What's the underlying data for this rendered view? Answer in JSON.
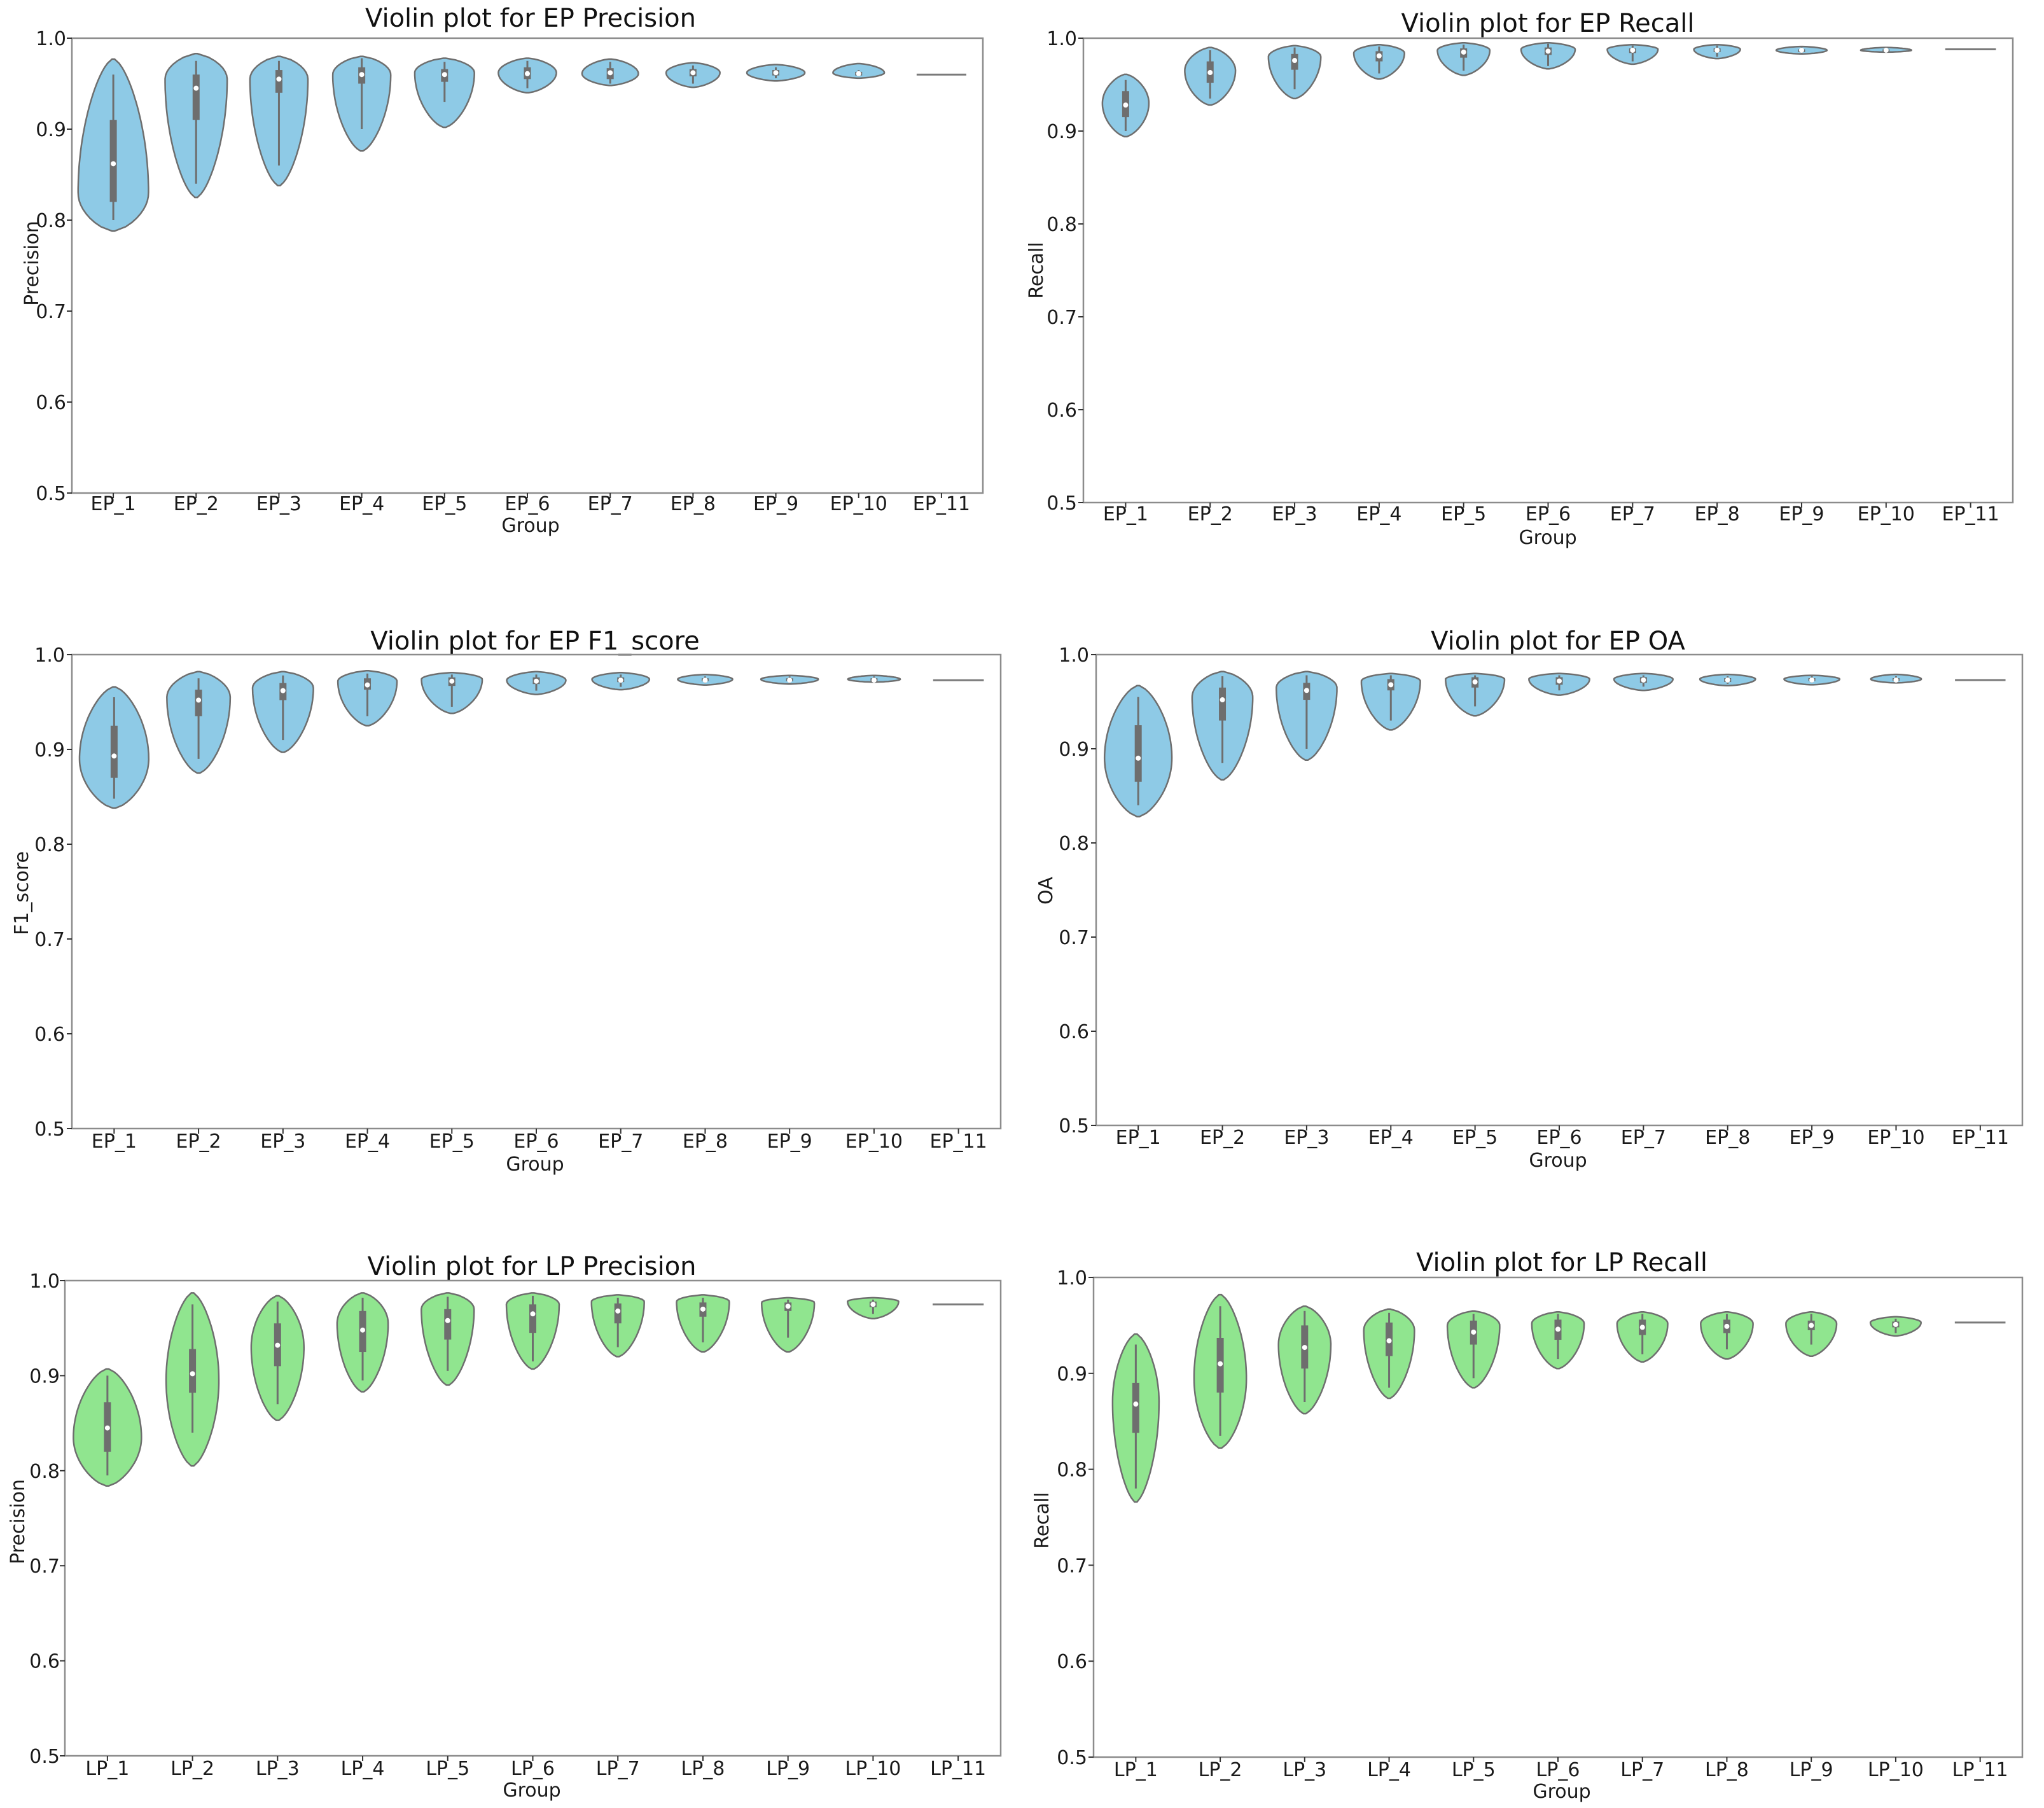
{
  "colors": {
    "ep_fill": "#8ecae6",
    "lp_fill": "#90e58f",
    "violin_edge": "#6e6e6e",
    "box": "#6e6e6e",
    "median": "#ffffff",
    "frame": "#8c8c8c"
  },
  "chart_data": [
    {
      "type": "violin",
      "title": "Violin plot for EP Precision",
      "xlabel": "Group",
      "ylabel": "Precision",
      "ylim": [
        0.5,
        1.0
      ],
      "yticks": [
        "0.5",
        "0.6",
        "0.7",
        "0.8",
        "0.9",
        "1.0"
      ],
      "color": "ep_fill",
      "grid": false,
      "categories": [
        "EP_1",
        "EP_2",
        "EP_3",
        "EP_4",
        "EP_5",
        "EP_6",
        "EP_7",
        "EP_8",
        "EP_9",
        "EP_10",
        "EP_11"
      ],
      "violins": [
        {
          "min": 0.788,
          "max": 0.977,
          "q1": 0.82,
          "median": 0.862,
          "q3": 0.91,
          "wlo": 0.8,
          "whi": 0.96,
          "width": 0.85,
          "mode": 0.83
        },
        {
          "min": 0.825,
          "max": 0.983,
          "q1": 0.91,
          "median": 0.945,
          "q3": 0.96,
          "wlo": 0.84,
          "whi": 0.975,
          "width": 0.75,
          "mode": 0.955
        },
        {
          "min": 0.838,
          "max": 0.98,
          "q1": 0.94,
          "median": 0.955,
          "q3": 0.965,
          "wlo": 0.86,
          "whi": 0.975,
          "width": 0.7,
          "mode": 0.955
        },
        {
          "min": 0.876,
          "max": 0.98,
          "q1": 0.95,
          "median": 0.96,
          "q3": 0.968,
          "wlo": 0.9,
          "whi": 0.978,
          "width": 0.7,
          "mode": 0.96
        },
        {
          "min": 0.902,
          "max": 0.978,
          "q1": 0.952,
          "median": 0.96,
          "q3": 0.966,
          "wlo": 0.93,
          "whi": 0.974,
          "width": 0.72,
          "mode": 0.962
        },
        {
          "min": 0.94,
          "max": 0.978,
          "q1": 0.955,
          "median": 0.961,
          "q3": 0.968,
          "wlo": 0.945,
          "whi": 0.975,
          "width": 0.7,
          "mode": 0.962
        },
        {
          "min": 0.948,
          "max": 0.977,
          "q1": 0.955,
          "median": 0.962,
          "q3": 0.967,
          "wlo": 0.95,
          "whi": 0.974,
          "width": 0.68,
          "mode": 0.961
        },
        {
          "min": 0.946,
          "max": 0.973,
          "q1": 0.958,
          "median": 0.962,
          "q3": 0.966,
          "wlo": 0.95,
          "whi": 0.97,
          "width": 0.65,
          "mode": 0.962
        },
        {
          "min": 0.953,
          "max": 0.971,
          "q1": 0.959,
          "median": 0.962,
          "q3": 0.965,
          "wlo": 0.956,
          "whi": 0.968,
          "width": 0.7,
          "mode": 0.962
        },
        {
          "min": 0.956,
          "max": 0.972,
          "q1": 0.959,
          "median": 0.961,
          "q3": 0.963,
          "wlo": 0.958,
          "whi": 0.965,
          "width": 0.62,
          "mode": 0.962
        },
        {
          "flat": 0.96,
          "width": 0.6
        }
      ]
    },
    {
      "type": "violin",
      "title": "Violin plot for EP Recall",
      "xlabel": "Group",
      "ylabel": "Recall",
      "ylim": [
        0.5,
        1.0
      ],
      "yticks": [
        "0.5",
        "0.6",
        "0.7",
        "0.8",
        "0.9",
        "1.0"
      ],
      "color": "ep_fill",
      "grid": false,
      "categories": [
        "EP_1",
        "EP_2",
        "EP_3",
        "EP_4",
        "EP_5",
        "EP_6",
        "EP_7",
        "EP_8",
        "EP_9",
        "EP_10",
        "EP_11"
      ],
      "violins": [
        {
          "min": 0.894,
          "max": 0.961,
          "q1": 0.915,
          "median": 0.928,
          "q3": 0.943,
          "wlo": 0.9,
          "whi": 0.955,
          "width": 0.55,
          "mode": 0.93
        },
        {
          "min": 0.928,
          "max": 0.99,
          "q1": 0.952,
          "median": 0.963,
          "q3": 0.975,
          "wlo": 0.935,
          "whi": 0.987,
          "width": 0.6,
          "mode": 0.965
        },
        {
          "min": 0.935,
          "max": 0.992,
          "q1": 0.966,
          "median": 0.976,
          "q3": 0.983,
          "wlo": 0.945,
          "whi": 0.99,
          "width": 0.62,
          "mode": 0.98
        },
        {
          "min": 0.956,
          "max": 0.993,
          "q1": 0.975,
          "median": 0.981,
          "q3": 0.986,
          "wlo": 0.962,
          "whi": 0.991,
          "width": 0.6,
          "mode": 0.984
        },
        {
          "min": 0.96,
          "max": 0.995,
          "q1": 0.979,
          "median": 0.985,
          "q3": 0.989,
          "wlo": 0.965,
          "whi": 0.993,
          "width": 0.62,
          "mode": 0.987
        },
        {
          "min": 0.967,
          "max": 0.995,
          "q1": 0.982,
          "median": 0.986,
          "q3": 0.99,
          "wlo": 0.97,
          "whi": 0.994,
          "width": 0.64,
          "mode": 0.988
        },
        {
          "min": 0.972,
          "max": 0.993,
          "q1": 0.984,
          "median": 0.987,
          "q3": 0.989,
          "wlo": 0.975,
          "whi": 0.992,
          "width": 0.6,
          "mode": 0.988
        },
        {
          "min": 0.978,
          "max": 0.993,
          "q1": 0.985,
          "median": 0.987,
          "q3": 0.989,
          "wlo": 0.98,
          "whi": 0.992,
          "width": 0.55,
          "mode": 0.988
        },
        {
          "min": 0.983,
          "max": 0.991,
          "q1": 0.985,
          "median": 0.987,
          "q3": 0.988,
          "wlo": 0.984,
          "whi": 0.99,
          "width": 0.6,
          "mode": 0.987
        },
        {
          "min": 0.985,
          "max": 0.99,
          "q1": 0.986,
          "median": 0.987,
          "q3": 0.988,
          "wlo": 0.985,
          "whi": 0.989,
          "width": 0.6,
          "mode": 0.987
        },
        {
          "flat": 0.988,
          "width": 0.6
        }
      ]
    },
    {
      "type": "violin",
      "title": "Violin plot for EP F1_score",
      "xlabel": "Group",
      "ylabel": "F1_score",
      "ylim": [
        0.5,
        1.0
      ],
      "yticks": [
        "0.5",
        "0.6",
        "0.7",
        "0.8",
        "0.9",
        "1.0"
      ],
      "color": "ep_fill",
      "grid": false,
      "categories": [
        "EP_1",
        "EP_2",
        "EP_3",
        "EP_4",
        "EP_5",
        "EP_6",
        "EP_7",
        "EP_8",
        "EP_9",
        "EP_10",
        "EP_11"
      ],
      "violins": [
        {
          "min": 0.838,
          "max": 0.966,
          "q1": 0.87,
          "median": 0.893,
          "q3": 0.925,
          "wlo": 0.848,
          "whi": 0.955,
          "width": 0.82,
          "mode": 0.89
        },
        {
          "min": 0.875,
          "max": 0.982,
          "q1": 0.935,
          "median": 0.952,
          "q3": 0.963,
          "wlo": 0.89,
          "whi": 0.975,
          "width": 0.75,
          "mode": 0.955
        },
        {
          "min": 0.897,
          "max": 0.982,
          "q1": 0.952,
          "median": 0.962,
          "q3": 0.97,
          "wlo": 0.91,
          "whi": 0.978,
          "width": 0.72,
          "mode": 0.965
        },
        {
          "min": 0.925,
          "max": 0.983,
          "q1": 0.963,
          "median": 0.968,
          "q3": 0.975,
          "wlo": 0.935,
          "whi": 0.98,
          "width": 0.7,
          "mode": 0.972
        },
        {
          "min": 0.938,
          "max": 0.981,
          "q1": 0.967,
          "median": 0.972,
          "q3": 0.976,
          "wlo": 0.945,
          "whi": 0.979,
          "width": 0.72,
          "mode": 0.974
        },
        {
          "min": 0.958,
          "max": 0.982,
          "q1": 0.969,
          "median": 0.972,
          "q3": 0.976,
          "wlo": 0.962,
          "whi": 0.979,
          "width": 0.7,
          "mode": 0.973
        },
        {
          "min": 0.963,
          "max": 0.981,
          "q1": 0.971,
          "median": 0.973,
          "q3": 0.976,
          "wlo": 0.966,
          "whi": 0.979,
          "width": 0.68,
          "mode": 0.974
        },
        {
          "min": 0.968,
          "max": 0.979,
          "q1": 0.972,
          "median": 0.973,
          "q3": 0.975,
          "wlo": 0.97,
          "whi": 0.977,
          "width": 0.65,
          "mode": 0.974
        },
        {
          "min": 0.969,
          "max": 0.978,
          "q1": 0.972,
          "median": 0.973,
          "q3": 0.975,
          "wlo": 0.97,
          "whi": 0.977,
          "width": 0.68,
          "mode": 0.974
        },
        {
          "min": 0.971,
          "max": 0.978,
          "q1": 0.972,
          "median": 0.973,
          "q3": 0.975,
          "wlo": 0.971,
          "whi": 0.977,
          "width": 0.62,
          "mode": 0.974
        },
        {
          "flat": 0.973,
          "width": 0.6
        }
      ]
    },
    {
      "type": "violin",
      "title": "Violin plot for EP OA",
      "xlabel": "Group",
      "ylabel": "OA",
      "ylim": [
        0.5,
        1.0
      ],
      "yticks": [
        "0.5",
        "0.6",
        "0.7",
        "0.8",
        "0.9",
        "1.0"
      ],
      "color": "ep_fill",
      "grid": false,
      "categories": [
        "EP_1",
        "EP_2",
        "EP_3",
        "EP_4",
        "EP_5",
        "EP_6",
        "EP_7",
        "EP_8",
        "EP_9",
        "EP_10",
        "EP_11"
      ],
      "violins": [
        {
          "min": 0.828,
          "max": 0.967,
          "q1": 0.865,
          "median": 0.89,
          "q3": 0.925,
          "wlo": 0.84,
          "whi": 0.955,
          "width": 0.8,
          "mode": 0.89
        },
        {
          "min": 0.867,
          "max": 0.982,
          "q1": 0.93,
          "median": 0.952,
          "q3": 0.965,
          "wlo": 0.885,
          "whi": 0.977,
          "width": 0.72,
          "mode": 0.955
        },
        {
          "min": 0.888,
          "max": 0.982,
          "q1": 0.952,
          "median": 0.962,
          "q3": 0.97,
          "wlo": 0.9,
          "whi": 0.978,
          "width": 0.72,
          "mode": 0.965
        },
        {
          "min": 0.92,
          "max": 0.98,
          "q1": 0.962,
          "median": 0.968,
          "q3": 0.974,
          "wlo": 0.93,
          "whi": 0.978,
          "width": 0.7,
          "mode": 0.972
        },
        {
          "min": 0.935,
          "max": 0.98,
          "q1": 0.965,
          "median": 0.971,
          "q3": 0.976,
          "wlo": 0.945,
          "whi": 0.978,
          "width": 0.7,
          "mode": 0.974
        },
        {
          "min": 0.957,
          "max": 0.98,
          "q1": 0.968,
          "median": 0.972,
          "q3": 0.976,
          "wlo": 0.962,
          "whi": 0.978,
          "width": 0.72,
          "mode": 0.974
        },
        {
          "min": 0.962,
          "max": 0.98,
          "q1": 0.97,
          "median": 0.973,
          "q3": 0.976,
          "wlo": 0.966,
          "whi": 0.978,
          "width": 0.7,
          "mode": 0.974
        },
        {
          "min": 0.967,
          "max": 0.979,
          "q1": 0.971,
          "median": 0.973,
          "q3": 0.975,
          "wlo": 0.969,
          "whi": 0.977,
          "width": 0.66,
          "mode": 0.974
        },
        {
          "min": 0.968,
          "max": 0.978,
          "q1": 0.972,
          "median": 0.973,
          "q3": 0.975,
          "wlo": 0.97,
          "whi": 0.977,
          "width": 0.66,
          "mode": 0.974
        },
        {
          "min": 0.97,
          "max": 0.979,
          "q1": 0.972,
          "median": 0.973,
          "q3": 0.975,
          "wlo": 0.971,
          "whi": 0.977,
          "width": 0.6,
          "mode": 0.974
        },
        {
          "flat": 0.973,
          "width": 0.6
        }
      ]
    },
    {
      "type": "violin",
      "title": "Violin plot for LP Precision",
      "xlabel": "Group",
      "ylabel": "Precision",
      "ylim": [
        0.5,
        1.0
      ],
      "yticks": [
        "0.5",
        "0.6",
        "0.7",
        "0.8",
        "0.9",
        "1.0"
      ],
      "color": "lp_fill",
      "grid": false,
      "categories": [
        "LP_1",
        "LP_2",
        "LP_3",
        "LP_4",
        "LP_5",
        "LP_6",
        "LP_7",
        "LP_8",
        "LP_9",
        "LP_10",
        "LP_11"
      ],
      "violins": [
        {
          "min": 0.784,
          "max": 0.907,
          "q1": 0.82,
          "median": 0.845,
          "q3": 0.872,
          "wlo": 0.795,
          "whi": 0.9,
          "width": 0.8,
          "mode": 0.835
        },
        {
          "min": 0.805,
          "max": 0.987,
          "q1": 0.882,
          "median": 0.902,
          "q3": 0.928,
          "wlo": 0.84,
          "whi": 0.975,
          "width": 0.62,
          "mode": 0.895
        },
        {
          "min": 0.853,
          "max": 0.984,
          "q1": 0.91,
          "median": 0.932,
          "q3": 0.955,
          "wlo": 0.87,
          "whi": 0.978,
          "width": 0.62,
          "mode": 0.93
        },
        {
          "min": 0.883,
          "max": 0.987,
          "q1": 0.925,
          "median": 0.948,
          "q3": 0.968,
          "wlo": 0.895,
          "whi": 0.982,
          "width": 0.6,
          "mode": 0.955
        },
        {
          "min": 0.89,
          "max": 0.987,
          "q1": 0.938,
          "median": 0.958,
          "q3": 0.97,
          "wlo": 0.905,
          "whi": 0.983,
          "width": 0.62,
          "mode": 0.97
        },
        {
          "min": 0.907,
          "max": 0.987,
          "q1": 0.945,
          "median": 0.965,
          "q3": 0.975,
          "wlo": 0.915,
          "whi": 0.984,
          "width": 0.62,
          "mode": 0.975
        },
        {
          "min": 0.92,
          "max": 0.985,
          "q1": 0.955,
          "median": 0.968,
          "q3": 0.976,
          "wlo": 0.93,
          "whi": 0.982,
          "width": 0.62,
          "mode": 0.978
        },
        {
          "min": 0.925,
          "max": 0.985,
          "q1": 0.962,
          "median": 0.97,
          "q3": 0.977,
          "wlo": 0.935,
          "whi": 0.982,
          "width": 0.62,
          "mode": 0.978
        },
        {
          "min": 0.925,
          "max": 0.982,
          "q1": 0.968,
          "median": 0.973,
          "q3": 0.977,
          "wlo": 0.94,
          "whi": 0.98,
          "width": 0.62,
          "mode": 0.977
        },
        {
          "min": 0.96,
          "max": 0.982,
          "q1": 0.972,
          "median": 0.975,
          "q3": 0.978,
          "wlo": 0.965,
          "whi": 0.98,
          "width": 0.6,
          "mode": 0.978
        },
        {
          "flat": 0.975,
          "width": 0.6
        }
      ]
    },
    {
      "type": "violin",
      "title": "Violin plot for LP Recall",
      "xlabel": "Group",
      "ylabel": "Recall",
      "ylim": [
        0.5,
        1.0
      ],
      "yticks": [
        "0.5",
        "0.6",
        "0.7",
        "0.8",
        "0.9",
        "1.0"
      ],
      "color": "lp_fill",
      "grid": false,
      "categories": [
        "LP_1",
        "LP_2",
        "LP_3",
        "LP_4",
        "LP_5",
        "LP_6",
        "LP_7",
        "LP_8",
        "LP_9",
        "LP_10",
        "LP_11"
      ],
      "violins": [
        {
          "min": 0.766,
          "max": 0.941,
          "q1": 0.838,
          "median": 0.868,
          "q3": 0.89,
          "wlo": 0.78,
          "whi": 0.93,
          "width": 0.55,
          "mode": 0.87
        },
        {
          "min": 0.822,
          "max": 0.982,
          "q1": 0.88,
          "median": 0.91,
          "q3": 0.937,
          "wlo": 0.835,
          "whi": 0.97,
          "width": 0.62,
          "mode": 0.895
        },
        {
          "min": 0.858,
          "max": 0.97,
          "q1": 0.905,
          "median": 0.927,
          "q3": 0.95,
          "wlo": 0.87,
          "whi": 0.965,
          "width": 0.62,
          "mode": 0.93
        },
        {
          "min": 0.874,
          "max": 0.967,
          "q1": 0.918,
          "median": 0.934,
          "q3": 0.953,
          "wlo": 0.885,
          "whi": 0.963,
          "width": 0.6,
          "mode": 0.945
        },
        {
          "min": 0.885,
          "max": 0.965,
          "q1": 0.93,
          "median": 0.943,
          "q3": 0.955,
          "wlo": 0.895,
          "whi": 0.962,
          "width": 0.62,
          "mode": 0.95
        },
        {
          "min": 0.905,
          "max": 0.964,
          "q1": 0.935,
          "median": 0.946,
          "q3": 0.956,
          "wlo": 0.915,
          "whi": 0.962,
          "width": 0.62,
          "mode": 0.952
        },
        {
          "min": 0.912,
          "max": 0.964,
          "q1": 0.94,
          "median": 0.948,
          "q3": 0.956,
          "wlo": 0.92,
          "whi": 0.962,
          "width": 0.6,
          "mode": 0.952
        },
        {
          "min": 0.915,
          "max": 0.964,
          "q1": 0.942,
          "median": 0.949,
          "q3": 0.956,
          "wlo": 0.925,
          "whi": 0.962,
          "width": 0.62,
          "mode": 0.952
        },
        {
          "min": 0.918,
          "max": 0.964,
          "q1": 0.945,
          "median": 0.95,
          "q3": 0.955,
          "wlo": 0.93,
          "whi": 0.962,
          "width": 0.6,
          "mode": 0.952
        },
        {
          "min": 0.939,
          "max": 0.959,
          "q1": 0.948,
          "median": 0.951,
          "q3": 0.954,
          "wlo": 0.942,
          "whi": 0.957,
          "width": 0.6,
          "mode": 0.953
        },
        {
          "flat": 0.953,
          "width": 0.6
        }
      ]
    }
  ]
}
